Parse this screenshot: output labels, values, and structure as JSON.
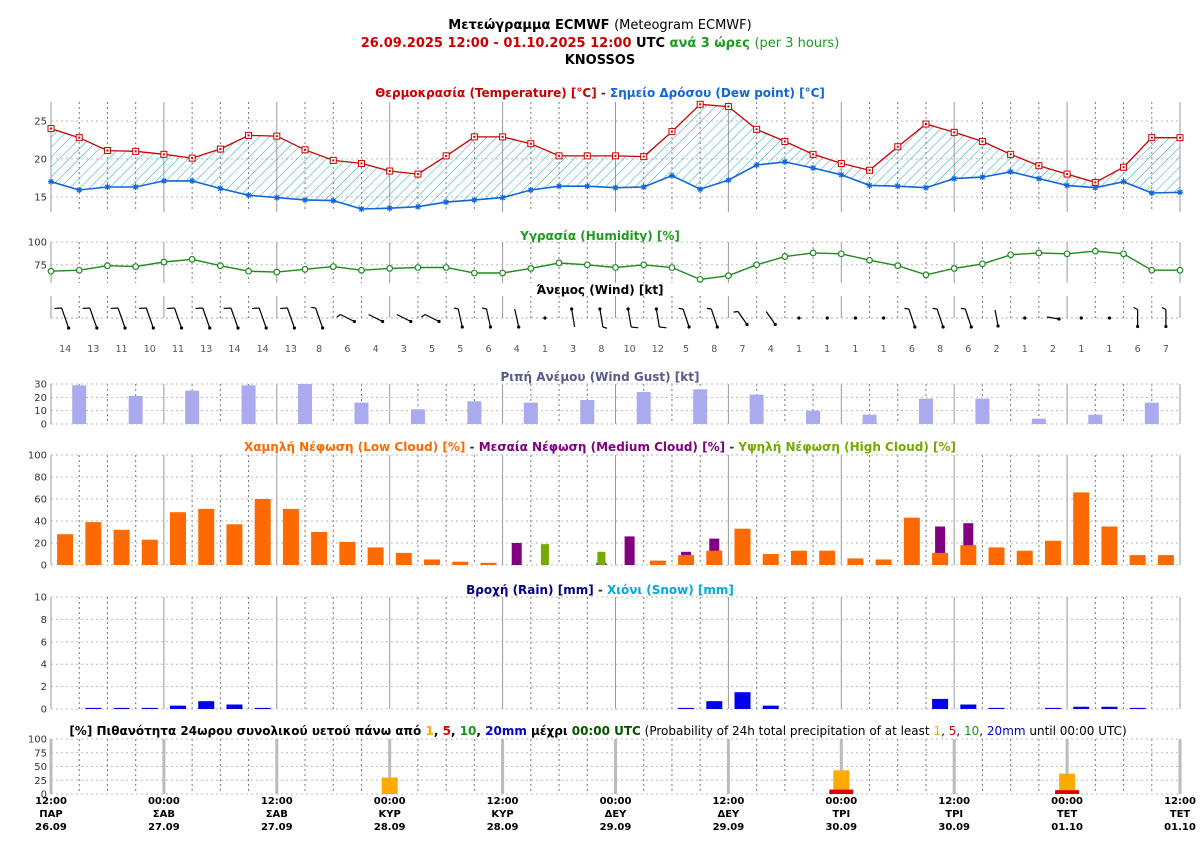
{
  "header": {
    "title_bold": "Μετεώγραμμα ECMWF",
    "title_rest": "(Meteogram ECMWF)",
    "date_start": "26.09.2025 12:00",
    "date_sep": "-",
    "date_end": "01.10.2025 12:00",
    "utc": "UTC",
    "step_gr": "ανά 3 ώρες",
    "step_en": "(per 3 hours)",
    "location": "KNOSSOS"
  },
  "colors": {
    "temperature": "#cc0000",
    "dew_point": "#1166dd",
    "humidity": "#1f8a1f",
    "gust": "#aaaaee",
    "low_cloud": "#ff6a00",
    "medium_cloud": "#800080",
    "high_cloud": "#77aa00",
    "rain": "#0000ee",
    "snow": "#00aadd",
    "prob1": "#ffaa00",
    "prob5": "#dd0000",
    "prob10": "#119911",
    "prob20": "#0000cc"
  },
  "time_axis": {
    "ticks": [
      {
        "time": "12:00",
        "day": "ΠΑΡ",
        "date": "26.09"
      },
      {
        "time": "00:00",
        "day": "ΣΑΒ",
        "date": "27.09"
      },
      {
        "time": "12:00",
        "day": "ΣΑΒ",
        "date": "27.09"
      },
      {
        "time": "00:00",
        "day": "ΚΥΡ",
        "date": "28.09"
      },
      {
        "time": "12:00",
        "day": "ΚΥΡ",
        "date": "28.09"
      },
      {
        "time": "00:00",
        "day": "ΔΕΥ",
        "date": "29.09"
      },
      {
        "time": "12:00",
        "day": "ΔΕΥ",
        "date": "29.09"
      },
      {
        "time": "00:00",
        "day": "ΤΡΙ",
        "date": "30.09"
      },
      {
        "time": "12:00",
        "day": "ΤΡΙ",
        "date": "30.09"
      },
      {
        "time": "00:00",
        "day": "ΤΕΤ",
        "date": "01.10"
      },
      {
        "time": "12:00",
        "day": "ΤΕΤ",
        "date": "01.10"
      }
    ]
  },
  "chart_data": [
    {
      "type": "line",
      "title_parts": [
        {
          "text": "Θερμοκρασία (Temperature) [°C]",
          "color": "#cc0000"
        },
        {
          "text": " - ",
          "color": "#333333"
        },
        {
          "text": "Σημείο Δρόσου (Dew point) [°C]",
          "color": "#1166dd"
        }
      ],
      "ylim": [
        13,
        27.5
      ],
      "yticks": [
        15,
        20,
        25
      ],
      "series": [
        {
          "name": "Θερμοκρασία (Temperature) [°C]",
          "values": [
            24,
            22.8,
            21.1,
            21,
            20.6,
            20.1,
            21.3,
            23.1,
            23,
            21.2,
            19.8,
            19.4,
            18.4,
            18,
            20.4,
            22.9,
            22.9,
            22,
            20.4,
            20.4,
            20.4,
            20.3,
            23.6,
            27.2,
            26.9,
            23.9,
            22.3,
            20.6,
            19.4,
            18.5,
            21.6,
            24.6,
            23.5,
            22.3,
            20.6,
            19.1,
            18,
            16.9,
            18.9,
            22.8,
            22.8
          ]
        },
        {
          "name": "Σημείο Δρόσου (Dew point) [°C]",
          "values": [
            17,
            15.9,
            16.3,
            16.3,
            17.1,
            17.1,
            16.1,
            15.2,
            14.9,
            14.6,
            14.5,
            13.4,
            13.5,
            13.7,
            14.3,
            14.6,
            14.9,
            15.9,
            16.4,
            16.4,
            16.2,
            16.3,
            17.8,
            16,
            17.2,
            19.2,
            19.6,
            18.8,
            17.9,
            16.5,
            16.4,
            16.2,
            17.4,
            17.6,
            18.3,
            17.4,
            16.5,
            16.2,
            17,
            15.5,
            15.6
          ]
        }
      ]
    },
    {
      "type": "line",
      "title_parts": [
        {
          "text": "Υγρασία (Humidity) [%]",
          "color": "#1f9a1f"
        }
      ],
      "ylim": [
        55,
        100
      ],
      "yticks": [
        75,
        100
      ],
      "series": [
        {
          "name": "Υγρασία (Humidity) [%]",
          "values": [
            68,
            69,
            74,
            73,
            78,
            81,
            74,
            68,
            67,
            70,
            73,
            69,
            71,
            72,
            72,
            66,
            66,
            71,
            77,
            75,
            72,
            75,
            72,
            59,
            63,
            75,
            84,
            88,
            87,
            80,
            74,
            64,
            71,
            76,
            86,
            88,
            87,
            90,
            87,
            69,
            69
          ]
        }
      ]
    },
    {
      "type": "wind_barbs",
      "title": "Άνεμος (Wind) [kt]",
      "speeds": [
        14,
        13,
        11,
        10,
        11,
        13,
        14,
        14,
        13,
        8,
        6,
        4,
        3,
        5,
        5,
        6,
        4,
        1,
        3,
        8,
        10,
        12,
        5,
        8,
        7,
        4,
        1,
        1,
        1,
        1,
        6,
        8,
        6,
        2,
        1,
        2,
        1,
        1,
        6,
        7
      ]
    },
    {
      "type": "bar",
      "title": "Ριπή Ανέμου (Wind Gust) [kt]",
      "ylim": [
        0,
        30
      ],
      "yticks": [
        0,
        10,
        20,
        30
      ],
      "values": [
        29,
        21,
        25,
        29,
        30,
        16,
        11,
        17,
        16,
        18,
        24,
        26,
        22,
        10,
        7,
        19,
        19,
        4,
        7,
        16
      ]
    },
    {
      "type": "bar",
      "title_parts": [
        {
          "text": "Χαμηλή Νέφωση (Low Cloud) [%]",
          "color": "#ff6a00"
        },
        {
          "text": " - ",
          "color": "#333333"
        },
        {
          "text": "Μεσαία Νέφωση (Medium Cloud) [%]",
          "color": "#800080"
        },
        {
          "text": " - ",
          "color": "#333333"
        },
        {
          "text": "Υψηλή Νέφωση (High Cloud) [%]",
          "color": "#77aa00"
        }
      ],
      "ylim": [
        0,
        100
      ],
      "yticks": [
        0,
        20,
        40,
        60,
        80,
        100
      ],
      "series": [
        {
          "name": "Χαμηλή Νέφωση (Low Cloud) [%]",
          "values": [
            28,
            39,
            32,
            23,
            48,
            51,
            37,
            60,
            51,
            30,
            21,
            16,
            11,
            5,
            3,
            2,
            0,
            0,
            0,
            0,
            0,
            4,
            9,
            13,
            33,
            10,
            13,
            13,
            6,
            5,
            43,
            11,
            18,
            16,
            13,
            22,
            66,
            35,
            9,
            9
          ]
        },
        {
          "name": "Μεσαία Νέφωση (Medium Cloud) [%]",
          "values": [
            0,
            0,
            0,
            0,
            0,
            0,
            0,
            0,
            0,
            0,
            0,
            0,
            0,
            0,
            0,
            0,
            20,
            0,
            0,
            2,
            26,
            0,
            12,
            24,
            0,
            0,
            0,
            0,
            0,
            0,
            0,
            35,
            38,
            0,
            0,
            0,
            0,
            0,
            0,
            0
          ]
        },
        {
          "name": "Υψηλή Νέφωση (High Cloud) [%]",
          "values": [
            0,
            0,
            0,
            0,
            0,
            0,
            0,
            0,
            0,
            0,
            0,
            0,
            0,
            0,
            0,
            0,
            0,
            19,
            0,
            12,
            0,
            0,
            0,
            0,
            0,
            0,
            0,
            0,
            0,
            0,
            0,
            0,
            0,
            0,
            0,
            0,
            0,
            0,
            0,
            0
          ]
        }
      ]
    },
    {
      "type": "bar",
      "title_parts": [
        {
          "text": "Βροχή (Rain) [mm]",
          "color": "#000080"
        },
        {
          "text": " - ",
          "color": "#333333"
        },
        {
          "text": "Χιόνι (Snow) [mm]",
          "color": "#00aadd"
        }
      ],
      "ylim": [
        0,
        10
      ],
      "yticks": [
        0,
        2,
        4,
        6,
        8,
        10
      ],
      "series": [
        {
          "name": "Βροχή (Rain) [mm]",
          "values": [
            0,
            0.1,
            0.1,
            0.1,
            0.3,
            0.7,
            0.4,
            0.1,
            0,
            0,
            0,
            0,
            0,
            0,
            0,
            0,
            0,
            0,
            0,
            0,
            0,
            0,
            0.1,
            0.7,
            1.5,
            0.3,
            0,
            0,
            0,
            0,
            0,
            0.9,
            0.4,
            0.1,
            0,
            0.1,
            0.2,
            0.2,
            0.1,
            0
          ]
        },
        {
          "name": "Χιόνι (Snow) [mm]",
          "values": [
            0,
            0,
            0,
            0,
            0,
            0,
            0,
            0,
            0,
            0,
            0,
            0,
            0,
            0,
            0,
            0,
            0,
            0,
            0,
            0,
            0,
            0,
            0,
            0,
            0,
            0,
            0,
            0,
            0,
            0,
            0,
            0,
            0,
            0,
            0,
            0,
            0,
            0,
            0,
            0
          ]
        }
      ]
    },
    {
      "type": "bar",
      "title_parts": [
        {
          "text": "[%] Πιθανότητα 24ωρου συνολικού υετού πάνω από ",
          "color": "#000000",
          "bold": true
        },
        {
          "text": "1",
          "color": "#ffaa00",
          "bold": true
        },
        {
          "text": ", ",
          "color": "#000000",
          "bold": true
        },
        {
          "text": "5",
          "color": "#dd0000",
          "bold": true
        },
        {
          "text": ", ",
          "color": "#000000",
          "bold": true
        },
        {
          "text": "10",
          "color": "#119911",
          "bold": true
        },
        {
          "text": ", ",
          "color": "#000000",
          "bold": true
        },
        {
          "text": "20mm",
          "color": "#0000cc",
          "bold": true
        },
        {
          "text": " μέχρι ",
          "color": "#000000",
          "bold": true
        },
        {
          "text": "00:00 UTC",
          "color": "#005500",
          "bold": true
        },
        {
          "text": " (Probability of 24h total precipitation of at least ",
          "color": "#000000",
          "bold": false
        },
        {
          "text": "1",
          "color": "#ffaa00",
          "bold": false
        },
        {
          "text": ", ",
          "color": "#000000",
          "bold": false
        },
        {
          "text": "5",
          "color": "#dd0000",
          "bold": false
        },
        {
          "text": ", ",
          "color": "#000000",
          "bold": false
        },
        {
          "text": "10",
          "color": "#119911",
          "bold": false
        },
        {
          "text": ", ",
          "color": "#000000",
          "bold": false
        },
        {
          "text": "20mm",
          "color": "#0000cc",
          "bold": false
        },
        {
          "text": " until 00:00 UTC)",
          "color": "#000000",
          "bold": false
        }
      ],
      "ylim": [
        0,
        100
      ],
      "yticks": [
        0,
        25,
        50,
        75,
        100
      ],
      "categories": [
        "28.09 00:00",
        "29.09 00:00",
        "30.09 00:00",
        "01.10 00:00"
      ],
      "series": [
        {
          "name": "1",
          "values": [
            30,
            0,
            43,
            37
          ]
        },
        {
          "name": "5",
          "values": [
            0,
            0,
            8,
            7
          ]
        },
        {
          "name": "10",
          "values": [
            0,
            0,
            0,
            0
          ]
        },
        {
          "name": "20mm",
          "values": [
            0,
            0,
            0,
            0
          ]
        }
      ]
    }
  ]
}
